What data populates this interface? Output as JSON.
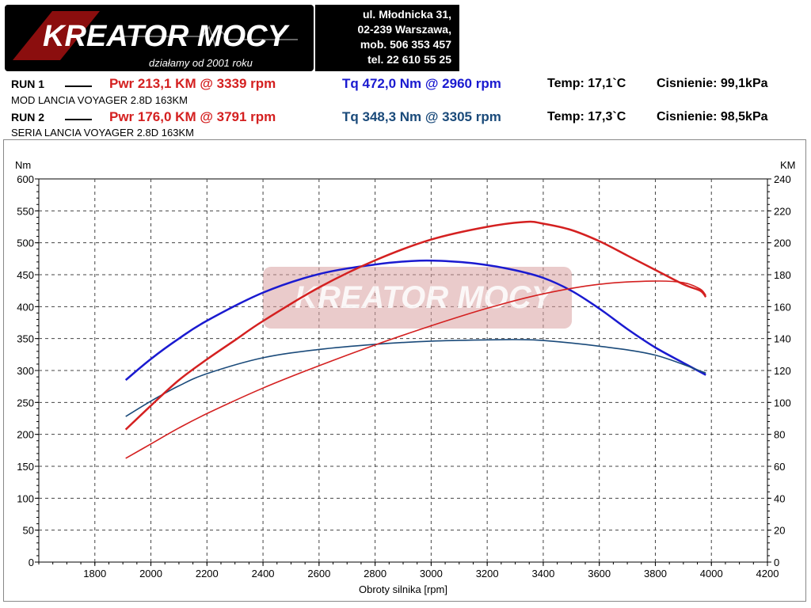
{
  "header": {
    "logo_text": "KREATOR MOCY",
    "logo_tagline": "działamy od 2001 roku",
    "address_lines": [
      "ul. Młodnicka 31,",
      "02-239  Warszawa,",
      "mob.  506 353 457",
      "tel.  22 610 55 25"
    ]
  },
  "runs": [
    {
      "label": "RUN 1",
      "pwr": "Pwr  213,1 KM @ 3339 rpm",
      "tq": "Tq 472,0 Nm @ 2960 rpm",
      "temp": "Temp: 17,1`C",
      "pressure": "Cisnienie: 99,1kPa",
      "description": "MOD LANCIA VOYAGER 2.8D 163KM",
      "pwr_color": "#d42020",
      "tq_color": "#1a1ad0"
    },
    {
      "label": "RUN 2",
      "pwr": "Pwr  176,0 KM @ 3791 rpm",
      "tq": "Tq 348,3 Nm @ 3305 rpm",
      "temp": "Temp: 17,3`C",
      "pressure": "Cisnienie: 98,5kPa",
      "description": "SERIA LANCIA VOYAGER 2.8D 163KM",
      "pwr_color": "#d42020",
      "tq_color": "#1a4a7a"
    }
  ],
  "chart_data": {
    "type": "line",
    "title": "",
    "xlabel": "Obroty silnika [rpm]",
    "ylabel_left": "Nm",
    "ylabel_right": "KM",
    "xlim": [
      1600,
      4200
    ],
    "ylim_left": [
      0,
      600
    ],
    "ylim_right": [
      0,
      240
    ],
    "x_ticks": [
      1800,
      2000,
      2200,
      2400,
      2600,
      2800,
      3000,
      3200,
      3400,
      3600,
      3800,
      4000,
      4200
    ],
    "y_ticks_left": [
      0,
      50,
      100,
      150,
      200,
      250,
      300,
      350,
      400,
      450,
      500,
      550,
      600
    ],
    "y_ticks_right": [
      0,
      20,
      40,
      60,
      80,
      100,
      120,
      140,
      160,
      180,
      200,
      220,
      240
    ],
    "grid": true,
    "watermark": "KREATOR MOCY",
    "series": [
      {
        "axis": "left",
        "color": "#1a1ad0",
        "x": [
          1910,
          2000,
          2100,
          2200,
          2400,
          2600,
          2800,
          2960,
          3100,
          3200,
          3300,
          3400,
          3500,
          3600,
          3700,
          3800,
          3900,
          3980
        ],
        "y": [
          285,
          318,
          350,
          378,
          422,
          451,
          466,
          472,
          470,
          465,
          457,
          445,
          425,
          397,
          365,
          336,
          312,
          293
        ]
      },
      {
        "axis": "left",
        "color": "#1a4a7a",
        "x": [
          1910,
          2000,
          2100,
          2200,
          2400,
          2600,
          2800,
          3000,
          3200,
          3305,
          3400,
          3600,
          3800,
          3980
        ],
        "y": [
          228,
          252,
          276,
          295,
          320,
          333,
          341,
          346,
          348,
          348.3,
          347,
          338,
          324,
          296
        ]
      },
      {
        "axis": "right",
        "color": "#d42020",
        "x": [
          1910,
          2000,
          2100,
          2200,
          2300,
          2400,
          2600,
          2800,
          3000,
          3200,
          3339,
          3400,
          3500,
          3600,
          3700,
          3800,
          3900,
          3960,
          3980
        ],
        "y": [
          83,
          98,
          114,
          127,
          139,
          151,
          172,
          189,
          202,
          210,
          213.1,
          212,
          208,
          201,
          192,
          183,
          174,
          170,
          166
        ]
      },
      {
        "axis": "right",
        "color": "#d42020",
        "x": [
          1910,
          2000,
          2100,
          2200,
          2400,
          2600,
          2800,
          3000,
          3200,
          3400,
          3600,
          3791,
          3900,
          3960,
          3980
        ],
        "y": [
          65,
          74,
          84,
          93,
          109,
          123,
          136,
          148,
          159,
          168,
          174,
          176.0,
          175,
          171,
          167
        ]
      }
    ]
  }
}
